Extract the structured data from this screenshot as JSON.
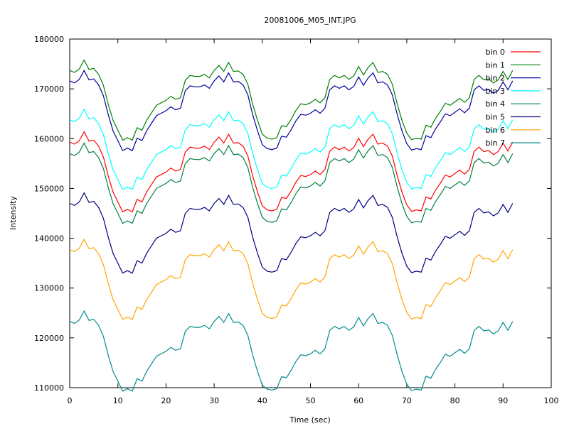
{
  "chart_data": {
    "type": "line",
    "title": "20081006_M05_INT.JPG",
    "xlabel": "Time (sec)",
    "ylabel": "Intensity",
    "xlim": [
      0,
      100
    ],
    "ylim": [
      110000,
      180000
    ],
    "xticks": [
      0,
      10,
      20,
      30,
      40,
      50,
      60,
      70,
      80,
      90,
      100
    ],
    "yticks": [
      110000,
      120000,
      130000,
      140000,
      150000,
      160000,
      170000,
      180000
    ],
    "grid": false,
    "legend_position": "top-right",
    "x": [
      0,
      1,
      2,
      3,
      4,
      5,
      6,
      7,
      8,
      9,
      10,
      11,
      12,
      13,
      14,
      15,
      16,
      17,
      18,
      19,
      20,
      21,
      22,
      23,
      24,
      25,
      26,
      27,
      28,
      29,
      30,
      31,
      32,
      33,
      34,
      35,
      36,
      37,
      38,
      39,
      40,
      41,
      42,
      43,
      44,
      45,
      46,
      47,
      48,
      49,
      50,
      51,
      52,
      53,
      54,
      55,
      56,
      57,
      58,
      59,
      60,
      61,
      62,
      63,
      64,
      65,
      66,
      67,
      68,
      69,
      70,
      71,
      72,
      73,
      74,
      75,
      76,
      77,
      78,
      79,
      80,
      81,
      82,
      83,
      84,
      85,
      86,
      87,
      88,
      89,
      90,
      91,
      92
    ],
    "baseline": [
      0,
      -400,
      300,
      2100,
      200,
      400,
      -800,
      -3000,
      -6800,
      -10000,
      -12000,
      -14000,
      -13500,
      -14000,
      -11500,
      -12000,
      -10000,
      -8500,
      -7000,
      -6500,
      -6000,
      -5200,
      -5800,
      -5500,
      -2000,
      -1000,
      -1200,
      -1200,
      -800,
      -1500,
      0,
      1000,
      -200,
      1600,
      -200,
      -100,
      -800,
      -2800,
      -6800,
      -10000,
      -12800,
      -13600,
      -13800,
      -13500,
      -11100,
      -11300,
      -9800,
      -8000,
      -6700,
      -6900,
      -6500,
      -5800,
      -6500,
      -5500,
      -1800,
      -1000,
      -1500,
      -1000,
      -1800,
      -1100,
      800,
      -900,
      600,
      1600,
      -400,
      -200,
      -800,
      -2800,
      -6700,
      -10000,
      -12600,
      -13900,
      -13600,
      -13800,
      -11000,
      -11400,
      -9600,
      -8200,
      -6600,
      -7000,
      -6300,
      -5600,
      -6400,
      -5500,
      -1800,
      -1000,
      -1900,
      -1700,
      -2500,
      -1900,
      -200,
      -1800,
      0
    ],
    "series": [
      {
        "name": "bin 0",
        "color": "#ff0000",
        "offset": 159300
      },
      {
        "name": "bin 1",
        "color": "#008000",
        "offset": 173700
      },
      {
        "name": "bin 2",
        "color": "#0000a0",
        "offset": 171600
      },
      {
        "name": "bin 3",
        "color": "#00ffff",
        "offset": 163800
      },
      {
        "name": "bin 4",
        "color": "#008040",
        "offset": 157000
      },
      {
        "name": "bin 5",
        "color": "#000080",
        "offset": 147000
      },
      {
        "name": "bin 6",
        "color": "#ffa500",
        "offset": 137700
      },
      {
        "name": "bin 7",
        "color": "#008b8b",
        "offset": 123300
      }
    ]
  }
}
